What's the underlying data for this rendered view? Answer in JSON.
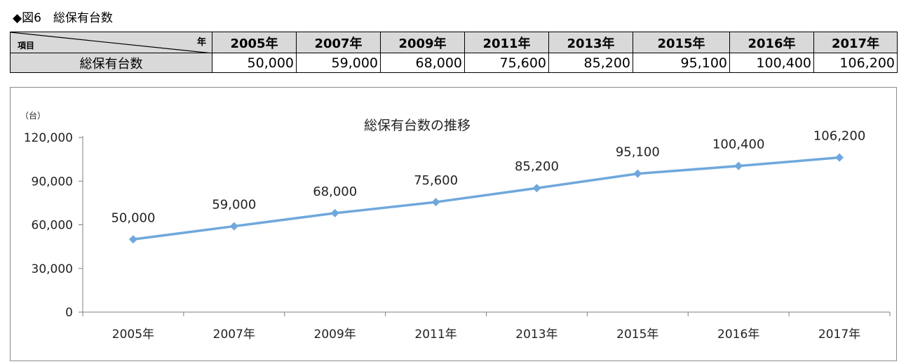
{
  "figure_title": "◆図6　総保有台数",
  "table": {
    "corner_item_label": "項目",
    "corner_year_label": "年",
    "row_label": "総保有台数",
    "years": [
      "2005年",
      "2007年",
      "2009年",
      "2011年",
      "2013年",
      "2015年",
      "2016年",
      "2017年"
    ],
    "values": [
      "50,000",
      "59,000",
      "68,000",
      "75,600",
      "85,200",
      "95,100",
      "100,400",
      "106,200"
    ]
  },
  "chart_data": {
    "type": "line",
    "title": "総保有台数の推移",
    "unit_label": "（台）",
    "categories": [
      "2005年",
      "2007年",
      "2009年",
      "2011年",
      "2013年",
      "2015年",
      "2016年",
      "2017年"
    ],
    "series": [
      {
        "values": [
          50000,
          59000,
          68000,
          75600,
          85200,
          95100,
          100400,
          106200
        ]
      }
    ],
    "data_labels": [
      "50,000",
      "59,000",
      "68,000",
      "75,600",
      "85,200",
      "95,100",
      "100,400",
      "106,200"
    ],
    "yticks": [
      0,
      30000,
      60000,
      90000,
      120000
    ],
    "ytick_labels": [
      "0",
      "30,000",
      "60,000",
      "90,000",
      "120,000"
    ],
    "ylim": [
      0,
      120000
    ],
    "grid": false,
    "marker": "diamond",
    "line_color": "#6fa8dc"
  }
}
